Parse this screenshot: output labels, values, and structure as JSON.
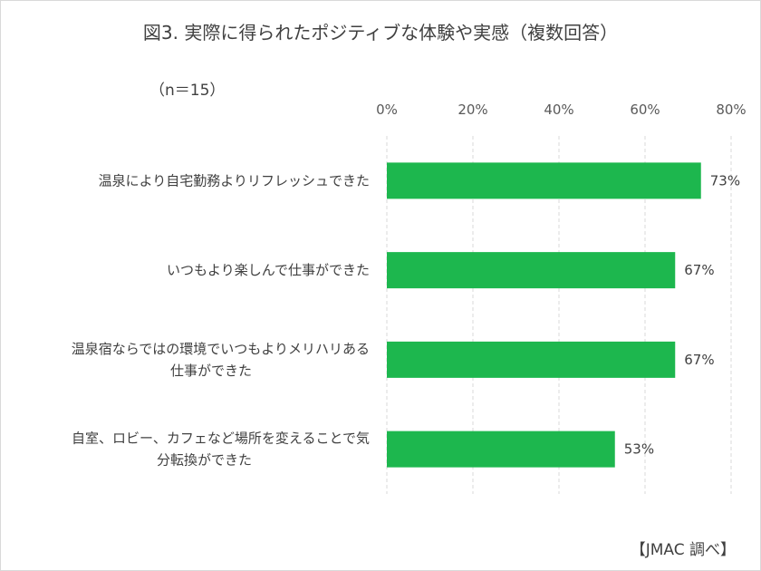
{
  "title": "図3.  実際に得られたポジティブな体験や実感（複数回答）",
  "n_label": "（n＝15）",
  "source": "【JMAC 調べ】",
  "colors": {
    "bar": "#1db74e",
    "grid": "#d9d9d9",
    "text": "#404040"
  },
  "chart_data": {
    "type": "bar",
    "orientation": "horizontal",
    "categories": [
      [
        "温泉により自宅勤務よりリフレッシュできた"
      ],
      [
        "いつもより楽しんで仕事ができた"
      ],
      [
        "温泉宿ならではの環境でいつもよりメリハリある",
        "仕事ができた"
      ],
      [
        "自室、ロビー、カフェなど場所を変えることで気",
        "分転換ができた"
      ]
    ],
    "values": [
      73,
      67,
      67,
      53
    ],
    "value_labels": [
      "73%",
      "67%",
      "67%",
      "53%"
    ],
    "xlim": [
      0,
      80
    ],
    "ticks": [
      0,
      20,
      40,
      60,
      80
    ],
    "tick_labels": [
      "0%",
      "20%",
      "40%",
      "60%",
      "80%"
    ],
    "axis_position": "top",
    "grid": true
  }
}
